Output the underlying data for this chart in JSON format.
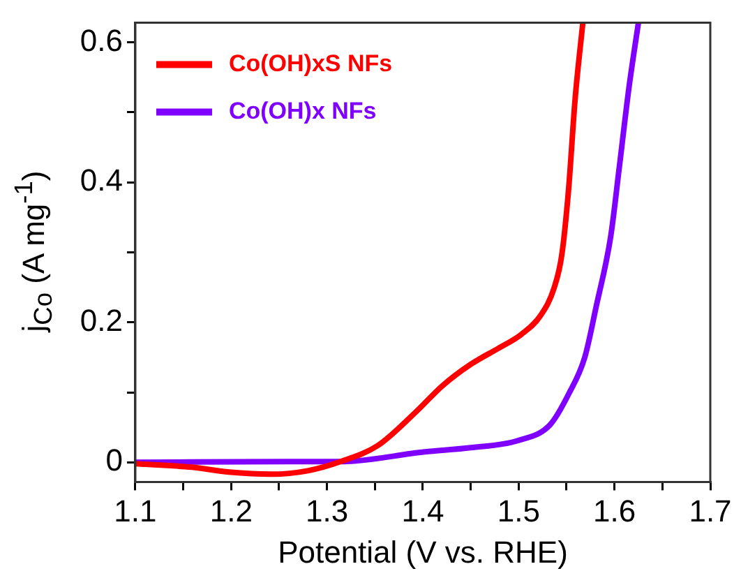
{
  "chart_data": {
    "type": "line",
    "xlabel": "Potential (V vs. RHE)",
    "ylabel": "j$_{Co}$ (A mg$^{-1}$)",
    "xlim": [
      1.1,
      1.7
    ],
    "xticks": [
      1.1,
      {
        "value": 1.15,
        "label": null
      },
      1.2,
      {
        "value": 1.25,
        "label": null
      },
      1.3,
      {
        "value": 1.35,
        "label": null
      },
      1.4,
      {
        "value": 1.45,
        "label": null
      },
      1.5,
      {
        "value": 1.55,
        "label": null
      },
      1.6,
      {
        "value": 1.65,
        "label": null
      },
      1.7
    ],
    "ylim": [
      -0.028,
      0.628
    ],
    "yticks": [
      0,
      {
        "value": 0.1,
        "label": null
      },
      0.2,
      {
        "value": 0.3,
        "label": null
      },
      0.4,
      {
        "value": 0.5,
        "label": null
      },
      0.6
    ],
    "legend": "top left",
    "grid": false,
    "marker": "none",
    "line_style": "solid",
    "series": [
      {
        "name": "Co(OH)xS NFs",
        "color": "#ff0000",
        "x": [
          1.1,
          1.159,
          1.198,
          1.242,
          1.28,
          1.314,
          1.353,
          1.392,
          1.421,
          1.45,
          1.479,
          1.503,
          1.523,
          1.537,
          1.545,
          1.552,
          1.559,
          1.567
        ],
        "values": [
          -0.002,
          -0.007,
          -0.014,
          -0.017,
          -0.012,
          0.001,
          0.024,
          0.071,
          0.11,
          0.14,
          0.163,
          0.183,
          0.21,
          0.249,
          0.296,
          0.388,
          0.52,
          0.628
        ]
      },
      {
        "name": "Co(OH)x NFs",
        "color": "#7f00ff",
        "x": [
          1.1,
          1.256,
          1.314,
          1.402,
          1.45,
          1.499,
          1.533,
          1.552,
          1.569,
          1.581,
          1.596,
          1.605,
          1.615,
          1.625
        ],
        "values": [
          0,
          0.001,
          0.001,
          0.015,
          0.021,
          0.031,
          0.054,
          0.097,
          0.15,
          0.223,
          0.322,
          0.421,
          0.534,
          0.628
        ]
      }
    ]
  }
}
